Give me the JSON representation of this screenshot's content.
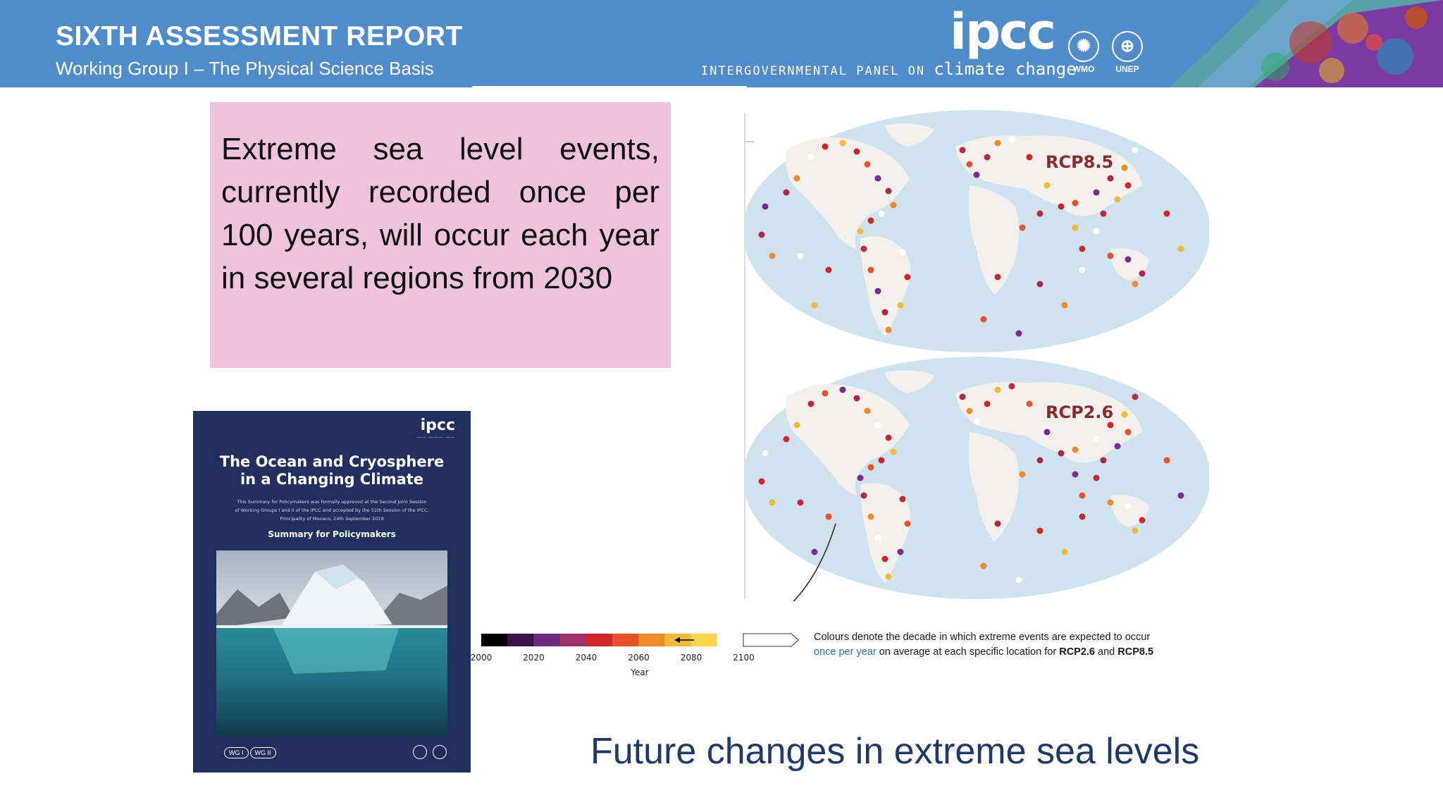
{
  "header": {
    "title": "SIXTH ASSESSMENT REPORT",
    "subtitle": "Working Group I – The Physical Science Basis",
    "logo_text": "ipcc",
    "logo_tagline_prefix": "INTERGOVERNMENTAL PANEL ON",
    "logo_tagline_suffix": "climate change",
    "org_1": "WMO",
    "org_2": "UNEP",
    "band_color": "#4f8cc9"
  },
  "statement": {
    "text": "Extreme sea level events, currently recorded once per 100 years, will occur each year in several regions from 2030",
    "background": "#f0c3dc"
  },
  "cover": {
    "logo": "ipcc",
    "title_line1": "The Ocean and Cryosphere",
    "title_line2": "in a Changing Climate",
    "subtitle_line1": "This Summary for Policymakers was formally approved at the Second Joint Session",
    "subtitle_line2": "of Working Groups I and II of the IPCC and accepted by the 51th Session of the IPCC,",
    "subtitle_line3": "Principality of Monaco, 24th September 2019",
    "spm_label": "Summary for Policymakers",
    "wg1": "WG I",
    "wg2": "WG II"
  },
  "maps": {
    "top_label": "RCP8.5",
    "bottom_label": "RCP2.6"
  },
  "colourbar": {
    "ticks": [
      "2000",
      "2020",
      "2040",
      "2060",
      "2080",
      "2100"
    ],
    "axis_label": "Year",
    "colors": [
      "#000000",
      "#3a1446",
      "#6b2a7a",
      "#a2316a",
      "#d0262a",
      "#e8502a",
      "#f08a2a",
      "#f5b935",
      "#f8d84a",
      "#ffffff"
    ]
  },
  "caption": {
    "line1": "Colours denote the decade in which extreme events are expected to occur",
    "highlight": "once per year",
    "line2_mid": "on average at each specific location for",
    "rcp_a": "RCP2.6",
    "and": "and",
    "rcp_b": "RCP8.5"
  },
  "footer": {
    "title": "Future changes in extreme sea levels",
    "color": "#1f3a6a"
  }
}
